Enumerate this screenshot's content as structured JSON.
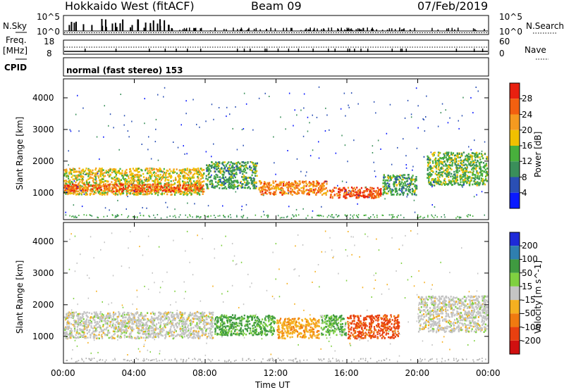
{
  "header": {
    "station": "Hokkaido West (fitACF)",
    "beam": "Beam 09",
    "date": "07/Feb/2019"
  },
  "noise_panel": {
    "left_label": "N.Sky",
    "right_label": "N.Search",
    "left_ticks": [
      "10^5",
      "10^0"
    ],
    "right_ticks": [
      "10^5",
      "10^0"
    ]
  },
  "freq_panel": {
    "left_label_1": "Freq.",
    "left_label_2": "[MHz]",
    "right_label": "Nave",
    "left_ticks": [
      "18",
      "8"
    ],
    "right_ticks": [
      "60",
      "0"
    ]
  },
  "cpid_panel": {
    "label": "CPID",
    "mode": "normal (fast stereo) 153"
  },
  "colors": {
    "power": [
      "#0a1aff",
      "#2a4fb4",
      "#3a8f5a",
      "#48b03c",
      "#f0c000",
      "#f59a20",
      "#f26010",
      "#e82010"
    ],
    "velocity": [
      "#1e2ad8",
      "#2f7fb0",
      "#3f9a40",
      "#7fd040",
      "#c4c4c4",
      "#f5b020",
      "#f07a10",
      "#e84010",
      "#d01010"
    ]
  },
  "chart_data": [
    {
      "type": "heatmap",
      "title": "",
      "xlabel": "Time UT",
      "ylabel": "Slant Range [km]",
      "xlim": [
        "00:00",
        "24:00"
      ],
      "ylim": [
        150,
        4600
      ],
      "x_ticks": [
        "00:00",
        "04:00",
        "08:00",
        "12:00",
        "16:00",
        "20:00",
        "00:00"
      ],
      "y_ticks": [
        "1000",
        "2000",
        "3000",
        "4000"
      ],
      "colorbar": {
        "label": "Power [dB]",
        "range": [
          0,
          32
        ],
        "ticks": [
          "4",
          "8",
          "12",
          "16",
          "20",
          "24",
          "28"
        ]
      },
      "regions": [
        {
          "t_start": "00:00",
          "t_end": "08:00",
          "range_km": [
            900,
            1800
          ],
          "power_db": 18
        },
        {
          "t_start": "00:00",
          "t_end": "08:00",
          "range_km": [
            1000,
            1300
          ],
          "power_db": 26
        },
        {
          "t_start": "08:00",
          "t_end": "11:00",
          "range_km": [
            1100,
            2000
          ],
          "power_db": 12
        },
        {
          "t_start": "11:00",
          "t_end": "15:00",
          "range_km": [
            900,
            1400
          ],
          "power_db": 24
        },
        {
          "t_start": "15:00",
          "t_end": "18:00",
          "range_km": [
            800,
            1200
          ],
          "power_db": 27
        },
        {
          "t_start": "18:00",
          "t_end": "20:00",
          "range_km": [
            900,
            1600
          ],
          "power_db": 12
        },
        {
          "t_start": "20:30",
          "t_end": "24:00",
          "range_km": [
            1200,
            2300
          ],
          "power_db": 14
        }
      ]
    },
    {
      "type": "heatmap",
      "title": "",
      "xlabel": "Time UT",
      "ylabel": "Slant Range [km]",
      "xlim": [
        "00:00",
        "24:00"
      ],
      "ylim": [
        150,
        4600
      ],
      "x_ticks": [
        "00:00",
        "04:00",
        "08:00",
        "12:00",
        "16:00",
        "20:00",
        "00:00"
      ],
      "y_ticks": [
        "1000",
        "2000",
        "3000",
        "4000"
      ],
      "colorbar": {
        "label": "Velocity [m s^-1]",
        "levels": [
          "200",
          "100",
          "50",
          "15",
          "-15",
          "-50",
          "-100",
          "-200"
        ]
      },
      "regions": [
        {
          "t_start": "00:00",
          "t_end": "08:30",
          "range_km": [
            900,
            1800
          ],
          "velocity_ms": 0
        },
        {
          "t_start": "08:30",
          "t_end": "12:00",
          "range_km": [
            1000,
            1700
          ],
          "velocity_ms": 40
        },
        {
          "t_start": "12:00",
          "t_end": "14:30",
          "range_km": [
            900,
            1600
          ],
          "velocity_ms": -40
        },
        {
          "t_start": "14:30",
          "t_end": "16:00",
          "range_km": [
            1000,
            1700
          ],
          "velocity_ms": 30
        },
        {
          "t_start": "16:00",
          "t_end": "19:00",
          "range_km": [
            900,
            1700
          ],
          "velocity_ms": -110
        },
        {
          "t_start": "20:00",
          "t_end": "24:00",
          "range_km": [
            1100,
            2300
          ],
          "velocity_ms": 0
        }
      ]
    }
  ]
}
